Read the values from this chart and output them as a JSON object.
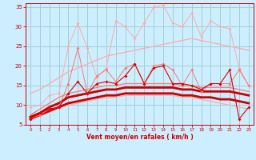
{
  "x": [
    0,
    1,
    2,
    3,
    4,
    5,
    6,
    7,
    8,
    9,
    10,
    11,
    12,
    13,
    14,
    15,
    16,
    17,
    18,
    19,
    20,
    21,
    22,
    23
  ],
  "line_rafales_light": [
    9.5,
    10.0,
    12.5,
    13.0,
    25.0,
    31.0,
    24.5,
    17.0,
    19.5,
    31.5,
    30.0,
    27.0,
    31.0,
    35.0,
    35.5,
    31.0,
    30.0,
    33.5,
    27.5,
    31.5,
    30.0,
    29.5,
    19.5,
    15.0
  ],
  "line_vent_pink": [
    6.5,
    7.5,
    9.0,
    9.5,
    15.5,
    24.5,
    13.0,
    17.5,
    19.0,
    16.0,
    19.5,
    20.5,
    15.5,
    20.0,
    20.5,
    19.0,
    15.0,
    19.0,
    13.5,
    15.5,
    15.5,
    15.5,
    19.0,
    15.0
  ],
  "line_smooth_upper": [
    13.0,
    14.0,
    15.5,
    17.0,
    18.5,
    19.5,
    20.5,
    21.5,
    22.5,
    23.0,
    23.5,
    24.0,
    24.5,
    25.0,
    25.5,
    26.0,
    26.5,
    27.0,
    26.5,
    26.0,
    25.5,
    25.0,
    24.5,
    24.0
  ],
  "line_smooth_lower": [
    6.5,
    7.5,
    8.5,
    9.5,
    10.0,
    10.5,
    11.0,
    11.5,
    12.0,
    12.0,
    12.5,
    12.5,
    12.5,
    12.5,
    12.5,
    12.5,
    12.0,
    12.0,
    11.5,
    11.0,
    10.5,
    10.0,
    9.5,
    9.0
  ],
  "line_smooth_mid": [
    7.5,
    9.0,
    10.5,
    12.0,
    13.0,
    13.5,
    14.0,
    14.5,
    15.0,
    15.0,
    15.5,
    15.5,
    15.5,
    15.5,
    15.5,
    15.5,
    15.0,
    15.0,
    14.5,
    14.5,
    14.5,
    14.5,
    14.0,
    13.5
  ],
  "line_dark_jagged": [
    6.5,
    8.0,
    9.0,
    9.5,
    13.0,
    16.0,
    13.0,
    15.5,
    16.0,
    15.5,
    17.5,
    20.5,
    15.5,
    19.5,
    20.0,
    15.5,
    15.5,
    15.0,
    14.0,
    15.5,
    15.5,
    19.0,
    6.5,
    9.5
  ],
  "line_red_bold1": [
    7.0,
    8.0,
    9.5,
    10.5,
    12.0,
    12.5,
    13.0,
    13.5,
    14.0,
    14.0,
    14.5,
    14.5,
    14.5,
    14.5,
    14.5,
    14.5,
    14.0,
    14.0,
    13.5,
    13.5,
    13.5,
    13.5,
    13.0,
    12.5
  ],
  "line_red_bold2": [
    6.5,
    7.5,
    8.5,
    9.5,
    10.5,
    11.0,
    11.5,
    12.0,
    12.5,
    12.5,
    13.0,
    13.0,
    13.0,
    13.0,
    13.0,
    13.0,
    12.5,
    12.5,
    12.0,
    12.0,
    11.5,
    11.5,
    11.0,
    10.5
  ],
  "color_light_pink": "#ffaaaa",
  "color_mid_pink": "#ff7777",
  "color_dark_red": "#dd0000",
  "color_bold_red": "#cc0000",
  "bg_color": "#cceeff",
  "grid_color": "#99cccc",
  "xlabel": "Vent moyen/en rafales ( km/h )",
  "ylim": [
    5,
    36
  ],
  "xlim": [
    -0.5,
    23.5
  ],
  "yticks": [
    5,
    10,
    15,
    20,
    25,
    30,
    35
  ],
  "xticks": [
    0,
    1,
    2,
    3,
    4,
    5,
    6,
    7,
    8,
    9,
    10,
    11,
    12,
    13,
    14,
    15,
    16,
    17,
    18,
    19,
    20,
    21,
    22,
    23
  ]
}
